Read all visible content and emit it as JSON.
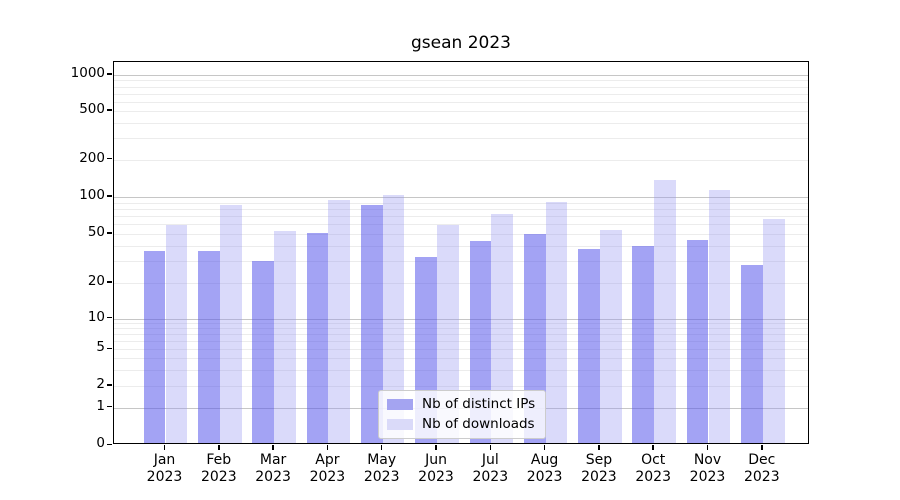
{
  "title": "gsean 2023",
  "chart_data": {
    "type": "bar",
    "title": "gsean 2023",
    "yscale": "symlog",
    "grid": true,
    "legend_position": "lower center (inside axes)",
    "months": [
      "Jan",
      "Feb",
      "Mar",
      "Apr",
      "May",
      "Jun",
      "Jul",
      "Aug",
      "Sep",
      "Oct",
      "Nov",
      "Dec"
    ],
    "year": "2023",
    "yticks": [
      0,
      1,
      2,
      5,
      10,
      20,
      50,
      100,
      200,
      500,
      1000
    ],
    "ylim": [
      0,
      1270
    ],
    "series": [
      {
        "name": "Nb of distinct IPs",
        "color": "rgba(88,88,235,0.55)",
        "solid_color": "#a4a4f1",
        "values": [
          35,
          35,
          29,
          49,
          82,
          31,
          42,
          48,
          36,
          38,
          43,
          27
        ]
      },
      {
        "name": "Nb of downloads",
        "color": "rgba(150,150,240,0.35)",
        "solid_color": "#dadaf9",
        "values": [
          57,
          82,
          51,
          90,
          100,
          57,
          70,
          87,
          52,
          132,
          110,
          64
        ]
      }
    ],
    "grid_major_color": "#c6c6c6",
    "grid_minor_color": "#ececec"
  }
}
